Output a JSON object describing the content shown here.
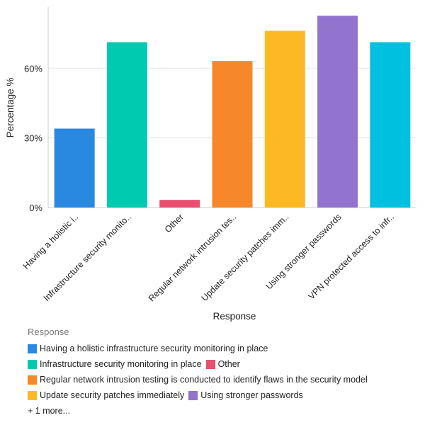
{
  "chart_data": {
    "type": "bar",
    "xlabel": "Response",
    "ylabel": "Percentage %",
    "ylim": [
      0,
      87
    ],
    "yticks": [
      "0%",
      "30%",
      "60%"
    ],
    "ytick_values": [
      0,
      30,
      60
    ],
    "grid": true,
    "categories": [
      "Having a holistic i..",
      "Infrastructure security monito..",
      "Other",
      "Regular network intrusion tes..",
      "Update security patches imm..",
      "Using stronger passwords",
      "VPN protected access to infr.."
    ],
    "values": [
      34.0,
      71.2,
      3.3,
      63.1,
      76.1,
      82.6,
      71.2
    ],
    "colors": [
      "#2989e0",
      "#00cbb0",
      "#e94f6f",
      "#f6882b",
      "#fdb924",
      "#9274cf",
      "#00c0e0"
    ],
    "legend": {
      "title": "Response",
      "position": "bottom",
      "rows": [
        [
          {
            "label": "Having a holistic infrastructure security monitoring in place",
            "color": "#2989e0"
          }
        ],
        [
          {
            "label": "Infrastructure security monitoring in place",
            "color": "#00cbb0"
          },
          {
            "label": "Other",
            "color": "#e94f6f"
          }
        ],
        [
          {
            "label": "Regular network intrusion testing is conducted to identify flaws in the security model",
            "color": "#f6882b"
          }
        ],
        [
          {
            "label": "Update security patches immediately",
            "color": "#fdb924"
          },
          {
            "label": "Using stronger passwords",
            "color": "#9274cf"
          }
        ]
      ],
      "more": "+ 1 more..."
    }
  }
}
